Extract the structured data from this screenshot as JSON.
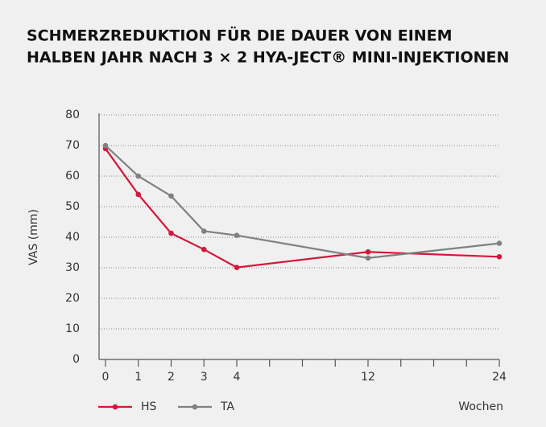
{
  "chart_data": {
    "type": "line",
    "title_lines": [
      "SCHMERZREDUKTION FÜR DIE DAUER VON EINEM",
      "HALBEN JAHR NACH 3 × 2 HYA-JECT® MINI-INJEKTIONEN"
    ],
    "y_label": "VAS (mm)",
    "x_label": "Wochen",
    "categories": [
      "0",
      "1",
      "2",
      "3",
      "4",
      null,
      null,
      null,
      "12",
      null,
      null,
      null,
      "24"
    ],
    "x": [
      0,
      1,
      2,
      3,
      4,
      12,
      24
    ],
    "series": [
      {
        "name": "HS",
        "color": "#d5173a",
        "values": [
          69,
          54,
          41.3,
          36,
          30.1,
          35.2,
          33.6
        ]
      },
      {
        "name": "TA",
        "color": "#808080",
        "values": [
          70,
          60,
          53.5,
          42,
          40.6,
          33.2,
          38
        ]
      }
    ],
    "ylim": [
      0,
      80
    ],
    "yticks": [
      0,
      10,
      20,
      30,
      40,
      50,
      60,
      70,
      80
    ],
    "grid": true,
    "legend": "bottom"
  }
}
